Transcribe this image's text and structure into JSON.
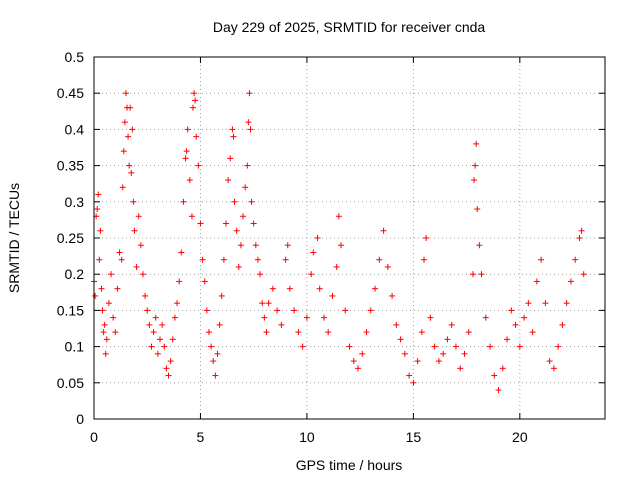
{
  "chart_data": {
    "type": "scatter",
    "title": "Day 229 of 2025, SRMTID for receiver cnda",
    "xlabel": "GPS time / hours",
    "ylabel": "SRMTID / TECUs",
    "xlim": [
      0,
      24
    ],
    "ylim": [
      0,
      0.5
    ],
    "xticks": [
      0,
      5,
      10,
      15,
      20
    ],
    "xtick_labels": [
      "0",
      "5",
      "10",
      "15",
      "20"
    ],
    "yticks": [
      0,
      0.05,
      0.1,
      0.15,
      0.2,
      0.25,
      0.3,
      0.35,
      0.4,
      0.45,
      0.5
    ],
    "ytick_labels": [
      "0",
      "0.05",
      "0.1",
      "0.15",
      "0.2",
      "0.25",
      "0.3",
      "0.35",
      "0.4",
      "0.45",
      "0.5"
    ],
    "grid": true,
    "marker": "+",
    "color": "#ff0000",
    "series": [
      {
        "name": "cnda",
        "points": [
          [
            0.0,
            0.19
          ],
          [
            0.05,
            0.17
          ],
          [
            0.1,
            0.28
          ],
          [
            0.15,
            0.29
          ],
          [
            0.2,
            0.31
          ],
          [
            0.25,
            0.22
          ],
          [
            0.3,
            0.26
          ],
          [
            0.35,
            0.18
          ],
          [
            0.4,
            0.15
          ],
          [
            0.45,
            0.12
          ],
          [
            0.5,
            0.13
          ],
          [
            0.55,
            0.09
          ],
          [
            0.6,
            0.11
          ],
          [
            0.7,
            0.16
          ],
          [
            0.8,
            0.2
          ],
          [
            0.9,
            0.14
          ],
          [
            1.0,
            0.12
          ],
          [
            1.1,
            0.18
          ],
          [
            1.2,
            0.23
          ],
          [
            1.3,
            0.22
          ],
          [
            1.35,
            0.32
          ],
          [
            1.4,
            0.37
          ],
          [
            1.45,
            0.41
          ],
          [
            1.5,
            0.45
          ],
          [
            1.55,
            0.43
          ],
          [
            1.6,
            0.39
          ],
          [
            1.65,
            0.35
          ],
          [
            1.7,
            0.43
          ],
          [
            1.75,
            0.34
          ],
          [
            1.8,
            0.4
          ],
          [
            1.85,
            0.3
          ],
          [
            1.9,
            0.26
          ],
          [
            2.0,
            0.21
          ],
          [
            2.1,
            0.28
          ],
          [
            2.2,
            0.24
          ],
          [
            2.3,
            0.2
          ],
          [
            2.4,
            0.17
          ],
          [
            2.5,
            0.15
          ],
          [
            2.6,
            0.13
          ],
          [
            2.7,
            0.1
          ],
          [
            2.8,
            0.12
          ],
          [
            2.9,
            0.14
          ],
          [
            3.0,
            0.09
          ],
          [
            3.1,
            0.11
          ],
          [
            3.2,
            0.13
          ],
          [
            3.3,
            0.1
          ],
          [
            3.4,
            0.07
          ],
          [
            3.5,
            0.06
          ],
          [
            3.6,
            0.08
          ],
          [
            3.7,
            0.11
          ],
          [
            3.8,
            0.14
          ],
          [
            3.9,
            0.16
          ],
          [
            4.0,
            0.19
          ],
          [
            4.1,
            0.23
          ],
          [
            4.2,
            0.3
          ],
          [
            4.3,
            0.36
          ],
          [
            4.35,
            0.37
          ],
          [
            4.4,
            0.4
          ],
          [
            4.5,
            0.33
          ],
          [
            4.6,
            0.28
          ],
          [
            4.65,
            0.43
          ],
          [
            4.7,
            0.45
          ],
          [
            4.75,
            0.44
          ],
          [
            4.8,
            0.39
          ],
          [
            4.9,
            0.35
          ],
          [
            5.0,
            0.27
          ],
          [
            5.1,
            0.22
          ],
          [
            5.2,
            0.19
          ],
          [
            5.3,
            0.15
          ],
          [
            5.4,
            0.12
          ],
          [
            5.5,
            0.1
          ],
          [
            5.6,
            0.08
          ],
          [
            5.7,
            0.06
          ],
          [
            5.8,
            0.09
          ],
          [
            5.9,
            0.13
          ],
          [
            6.0,
            0.17
          ],
          [
            6.1,
            0.22
          ],
          [
            6.2,
            0.27
          ],
          [
            6.3,
            0.33
          ],
          [
            6.4,
            0.36
          ],
          [
            6.5,
            0.4
          ],
          [
            6.55,
            0.39
          ],
          [
            6.6,
            0.3
          ],
          [
            6.7,
            0.26
          ],
          [
            6.8,
            0.21
          ],
          [
            6.9,
            0.24
          ],
          [
            7.0,
            0.28
          ],
          [
            7.1,
            0.32
          ],
          [
            7.2,
            0.35
          ],
          [
            7.25,
            0.41
          ],
          [
            7.3,
            0.45
          ],
          [
            7.35,
            0.4
          ],
          [
            7.4,
            0.3
          ],
          [
            7.5,
            0.27
          ],
          [
            7.6,
            0.24
          ],
          [
            7.7,
            0.22
          ],
          [
            7.8,
            0.2
          ],
          [
            7.9,
            0.16
          ],
          [
            8.0,
            0.14
          ],
          [
            8.1,
            0.12
          ],
          [
            8.2,
            0.16
          ],
          [
            8.4,
            0.18
          ],
          [
            8.6,
            0.15
          ],
          [
            8.8,
            0.13
          ],
          [
            9.0,
            0.22
          ],
          [
            9.1,
            0.24
          ],
          [
            9.2,
            0.18
          ],
          [
            9.4,
            0.15
          ],
          [
            9.6,
            0.12
          ],
          [
            9.8,
            0.1
          ],
          [
            10.0,
            0.14
          ],
          [
            10.2,
            0.2
          ],
          [
            10.3,
            0.23
          ],
          [
            10.5,
            0.25
          ],
          [
            10.6,
            0.18
          ],
          [
            10.8,
            0.14
          ],
          [
            11.0,
            0.12
          ],
          [
            11.2,
            0.17
          ],
          [
            11.4,
            0.21
          ],
          [
            11.5,
            0.28
          ],
          [
            11.6,
            0.24
          ],
          [
            11.8,
            0.15
          ],
          [
            12.0,
            0.1
          ],
          [
            12.2,
            0.08
          ],
          [
            12.4,
            0.07
          ],
          [
            12.6,
            0.09
          ],
          [
            12.8,
            0.12
          ],
          [
            13.0,
            0.15
          ],
          [
            13.2,
            0.18
          ],
          [
            13.4,
            0.22
          ],
          [
            13.6,
            0.26
          ],
          [
            13.8,
            0.21
          ],
          [
            14.0,
            0.17
          ],
          [
            14.2,
            0.13
          ],
          [
            14.4,
            0.11
          ],
          [
            14.6,
            0.09
          ],
          [
            14.8,
            0.06
          ],
          [
            15.0,
            0.05
          ],
          [
            15.2,
            0.08
          ],
          [
            15.4,
            0.12
          ],
          [
            15.5,
            0.22
          ],
          [
            15.6,
            0.25
          ],
          [
            15.8,
            0.14
          ],
          [
            16.0,
            0.1
          ],
          [
            16.2,
            0.08
          ],
          [
            16.4,
            0.09
          ],
          [
            16.6,
            0.11
          ],
          [
            16.8,
            0.13
          ],
          [
            17.0,
            0.1
          ],
          [
            17.2,
            0.07
          ],
          [
            17.4,
            0.09
          ],
          [
            17.6,
            0.12
          ],
          [
            17.8,
            0.2
          ],
          [
            17.85,
            0.33
          ],
          [
            17.9,
            0.35
          ],
          [
            17.95,
            0.38
          ],
          [
            18.0,
            0.29
          ],
          [
            18.1,
            0.24
          ],
          [
            18.2,
            0.2
          ],
          [
            18.4,
            0.14
          ],
          [
            18.6,
            0.1
          ],
          [
            18.8,
            0.06
          ],
          [
            19.0,
            0.04
          ],
          [
            19.2,
            0.07
          ],
          [
            19.4,
            0.11
          ],
          [
            19.6,
            0.15
          ],
          [
            19.8,
            0.13
          ],
          [
            20.0,
            0.1
          ],
          [
            20.2,
            0.14
          ],
          [
            20.4,
            0.16
          ],
          [
            20.6,
            0.12
          ],
          [
            20.8,
            0.19
          ],
          [
            21.0,
            0.22
          ],
          [
            21.2,
            0.16
          ],
          [
            21.4,
            0.08
          ],
          [
            21.6,
            0.07
          ],
          [
            21.8,
            0.1
          ],
          [
            22.0,
            0.13
          ],
          [
            22.2,
            0.16
          ],
          [
            22.4,
            0.19
          ],
          [
            22.6,
            0.22
          ],
          [
            22.8,
            0.25
          ],
          [
            22.9,
            0.26
          ],
          [
            23.0,
            0.2
          ]
        ]
      }
    ]
  }
}
